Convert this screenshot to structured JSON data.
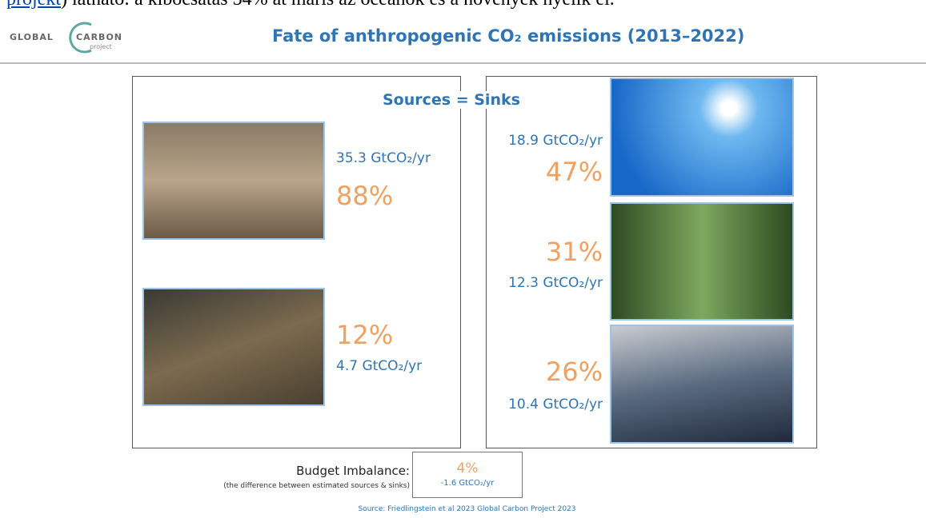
{
  "intro": {
    "link": "projekt",
    "text": ") látható: a kibocsátás 54% át máris az óceánok és a növények nyelik el."
  },
  "header": {
    "logo": {
      "word1": "GLOBAL",
      "word2": "CARBON",
      "word3": "project"
    },
    "title": "Fate of anthropogenic CO₂ emissions (2013–2022)"
  },
  "equation": "Sources = Sinks",
  "sources": [
    {
      "amount": "35.3 GtCO₂/yr",
      "share": "88%"
    },
    {
      "amount": "4.7 GtCO₂/yr",
      "share": "12%"
    }
  ],
  "sinks": [
    {
      "amount": "18.9 GtCO₂/yr",
      "share": "47%"
    },
    {
      "amount": "12.3 GtCO₂/yr",
      "share": "31%"
    },
    {
      "amount": "10.4 GtCO₂/yr",
      "share": "26%"
    }
  ],
  "budget_imbalance": {
    "label": "Budget Imbalance:",
    "note": "(the difference between estimated sources & sinks)",
    "share": "4%",
    "amount": "-1.6 GtCO₂/yr"
  },
  "source_note": "Source: Friedlingstein et al 2023 Global Carbon Project 2023"
}
